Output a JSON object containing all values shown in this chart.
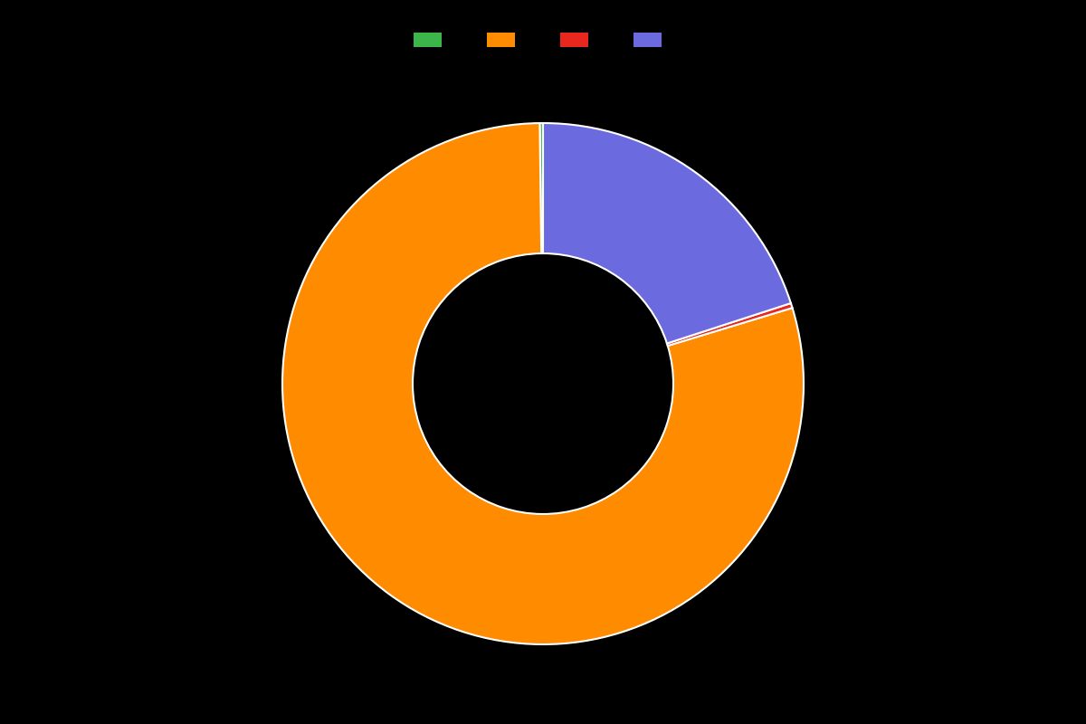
{
  "values": [
    0.2,
    79.5,
    0.3,
    20.0
  ],
  "colors": [
    "#3cb54a",
    "#ff8c00",
    "#e8281e",
    "#6b6bdf"
  ],
  "legend_colors": [
    "#3cb54a",
    "#ff8c00",
    "#e8281e",
    "#6b6bdf"
  ],
  "legend_labels": [
    "",
    "",
    "",
    ""
  ],
  "background_color": "#000000",
  "wedge_edge_color": "#ffffff",
  "wedge_linewidth": 1.5,
  "donut_width": 0.5,
  "startangle": 90
}
